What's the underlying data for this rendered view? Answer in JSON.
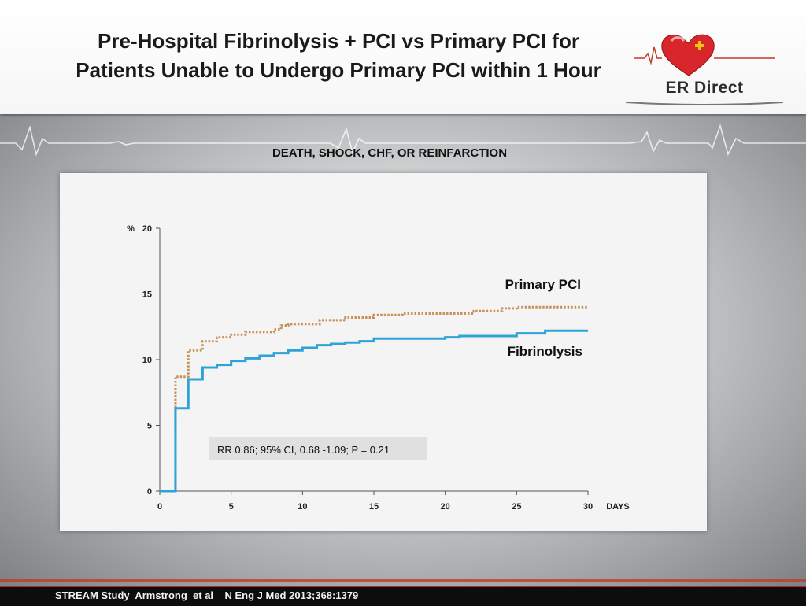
{
  "slide": {
    "title": "Pre-Hospital Fibrinolysis + PCI vs Primary PCI for Patients Unable to Undergo Primary PCI within 1 Hour",
    "logo_text": "ER Direct",
    "subtitle": "DEATH, SHOCK, CHF, OR REINFARCTION",
    "footer": "STREAM Study  Armstrong  et al    N Eng J Med 2013;368:1379"
  },
  "colors": {
    "primary_pci": "#c8915a",
    "fibrinolysis": "#2ea3d6",
    "axis": "#555555"
  },
  "chart_data": {
    "type": "line",
    "title": "DEATH, SHOCK, CHF, OR REINFARCTION",
    "xlabel": "DAYS",
    "ylabel": "%",
    "xlim": [
      0,
      30
    ],
    "ylim": [
      0,
      20
    ],
    "x_ticks": [
      0,
      5,
      10,
      15,
      20,
      25,
      30
    ],
    "y_ticks": [
      0,
      5,
      10,
      15,
      20
    ],
    "grid": false,
    "annotation": "RR  0.86; 95% CI, 0.68 -1.09; P = 0.21",
    "series": [
      {
        "name": "Primary PCI",
        "style": "dotted",
        "color": "#c8915a",
        "x": [
          0,
          1,
          1.1,
          2,
          3,
          4,
          5,
          6,
          8,
          8.5,
          9,
          11,
          11.2,
          13,
          15,
          17,
          20,
          22,
          24,
          25,
          30
        ],
        "y": [
          0,
          0,
          8.7,
          10.7,
          11.4,
          11.7,
          11.9,
          12.1,
          12.3,
          12.6,
          12.7,
          12.7,
          13.0,
          13.2,
          13.4,
          13.5,
          13.5,
          13.7,
          13.9,
          14.0,
          14.0
        ]
      },
      {
        "name": "Fibrinolysis",
        "style": "solid",
        "color": "#2ea3d6",
        "x": [
          0,
          1,
          1.1,
          2,
          3,
          4,
          5,
          6,
          7,
          8,
          9,
          10,
          11,
          12,
          13,
          14,
          15,
          20,
          21,
          25,
          27,
          30
        ],
        "y": [
          0,
          0,
          6.3,
          8.5,
          9.4,
          9.6,
          9.9,
          10.1,
          10.3,
          10.5,
          10.7,
          10.9,
          11.1,
          11.2,
          11.3,
          11.4,
          11.6,
          11.7,
          11.8,
          12.0,
          12.2,
          12.2
        ]
      }
    ]
  }
}
